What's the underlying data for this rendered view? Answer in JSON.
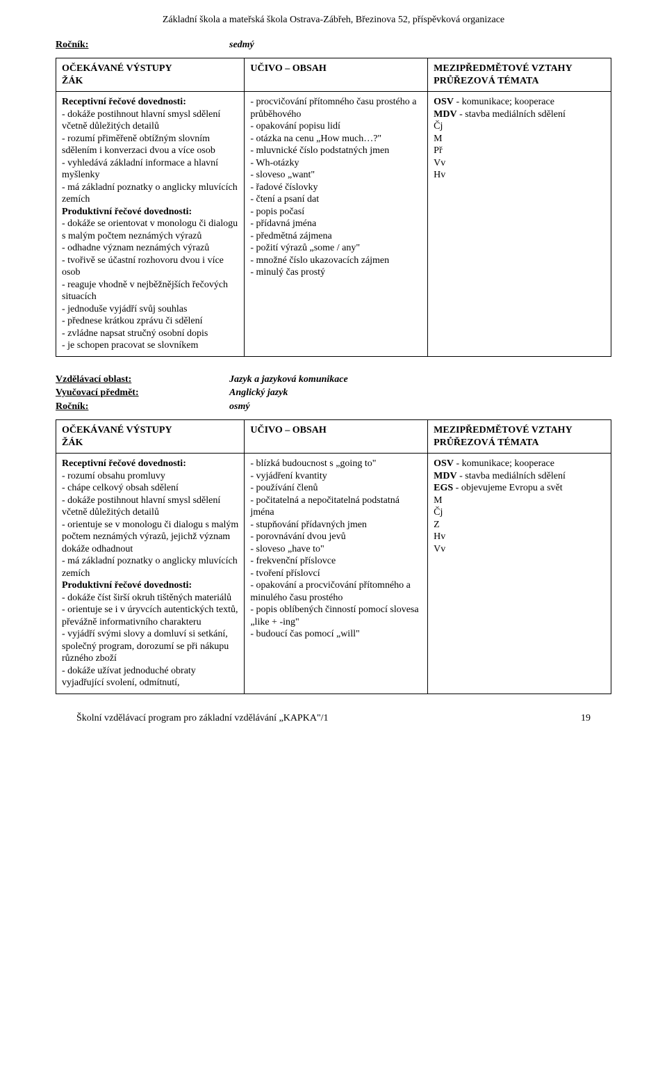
{
  "header": "Základní škola a mateřská škola Ostrava-Zábřeh, Březinova 52, příspěvková organizace",
  "top": {
    "label": "Ročník:",
    "value": "sedmý"
  },
  "table1": {
    "head": {
      "c1": "OČEKÁVANÉ VÝSTUPY\nŽÁK",
      "c2": "UČIVO – OBSAH",
      "c3": "MEZIPŘEDMĚTOVÉ VZTAHY\nPRŮŘEZOVÁ TÉMATA"
    },
    "row": {
      "c1": "Receptivní řečové dovednosti:\n- dokáže postihnout hlavní smysl sdělení včetně důležitých detailů\n- rozumí přiměřeně obtížným slovním sdělením i konverzaci dvou a více osob\n- vyhledává základní informace a hlavní myšlenky\n- má základní poznatky o anglicky mluvících zemích\nProduktivní řečové dovednosti:\n- dokáže se orientovat v monologu či dialogu s malým počtem neznámých výrazů\n- odhadne význam neznámých výrazů\n- tvořivě se účastní rozhovoru dvou i více osob\n- reaguje vhodně v nejběžnějších řečových situacích\n- jednoduše vyjádří svůj souhlas\n- přednese krátkou zprávu či sdělení\n- zvládne napsat stručný osobní dopis\n- je schopen pracovat se slovníkem",
      "c2": "- procvičování přítomného času prostého a průběhového\n- opakování popisu lidí\n- otázka na cenu „How much…?\"\n- mluvnické číslo podstatných jmen\n- Wh-otázky\n- sloveso „want\"\n- řadové číslovky\n- čtení a psaní dat\n- popis počasí\n- přídavná jména\n- předmětná zájmena\n- požití výrazů „some / any\"\n- množné číslo ukazovacích zájmen\n- minulý čas prostý",
      "c3": "OSV - komunikace; kooperace\nMDV - stavba mediálních sdělení\nČj\nM\nPř\nVv\nHv"
    }
  },
  "section": {
    "r1label": "Vzdělávací oblast:",
    "r1value": "Jazyk a jazyková komunikace",
    "r2label": "Vyučovací předmět:",
    "r2value": "Anglický jazyk",
    "r3label": "Ročník:",
    "r3value": "osmý"
  },
  "table2": {
    "head": {
      "c1": "OČEKÁVANÉ VÝSTUPY\nŽÁK",
      "c2": "UČIVO – OBSAH",
      "c3": "MEZIPŘEDMĚTOVÉ VZTAHY\nPRŮŘEZOVÁ TÉMATA"
    },
    "row": {
      "c1": "Receptivní řečové dovednosti:\n- rozumí obsahu promluvy\n- chápe celkový obsah sdělení\n- dokáže postihnout hlavní smysl sdělení včetně důležitých detailů\n- orientuje se v monologu či dialogu s malým počtem neznámých výrazů, jejichž význam dokáže odhadnout\n- má základní poznatky o anglicky mluvících zemích\nProduktivní řečové dovednosti:\n- dokáže číst širší okruh tištěných materiálů\n- orientuje se i v úryvcích autentických textů, převážně informativního charakteru\n- vyjádří svými slovy a domluví si setkání, společný program, dorozumí se při nákupu různého zboží\n- dokáže užívat jednoduché obraty vyjadřující svolení, odmítnutí,",
      "c2": "- blízká budoucnost s „going to\"\n- vyjádření kvantity\n- používání členů\n- počitatelná a nepočitatelná podstatná jména\n- stupňování přídavných jmen\n- porovnávání dvou jevů\n- sloveso „have to\"\n- frekvenční příslovce\n- tvoření příslovcí\n- opakování a procvičování přítomného a minulého času prostého\n- popis oblíbených činností pomocí slovesa „like + -ing\"\n- budoucí čas pomocí „will\"",
      "c3": "OSV - komunikace; kooperace\nMDV - stavba mediálních sdělení\nEGS - objevujeme Evropu a svět\nM\nČj\nZ\nHv\nVv"
    }
  },
  "footer": {
    "text": "Školní vzdělávací program pro základní vzdělávání „KAPKA\"/1",
    "page": "19"
  },
  "bold_prefixes": [
    "Receptivní řečové dovednosti:",
    "Produktivní řečové dovednosti:",
    "OSV",
    "MDV",
    "EGS"
  ]
}
